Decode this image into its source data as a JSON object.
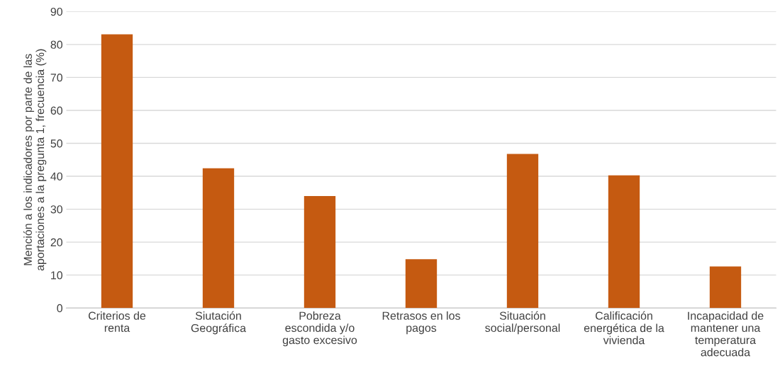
{
  "chart_data": {
    "type": "bar",
    "ylabel": "Mención a los indicadores por parte de las\naportaciones a la pregunta 1, frecuencia (%)",
    "categories": [
      "Criterios de\nrenta",
      "Siutación\nGeográfica",
      "Pobreza\nescondida y/o\ngasto excesivo",
      "Retrasos en los\npagos",
      "Situación\nsocial/personal",
      "Calificación\nenergética de la\nvivienda",
      "Incapacidad de\nmantener una\ntemperatura\nadecuada"
    ],
    "values": [
      83.1,
      42.4,
      34.0,
      14.8,
      46.8,
      40.3,
      12.6
    ],
    "color": "#c55a11",
    "ylim": [
      0,
      90
    ],
    "yticks": [
      0,
      10,
      20,
      30,
      40,
      50,
      60,
      70,
      80,
      90
    ],
    "grid": "y",
    "legend": false
  }
}
